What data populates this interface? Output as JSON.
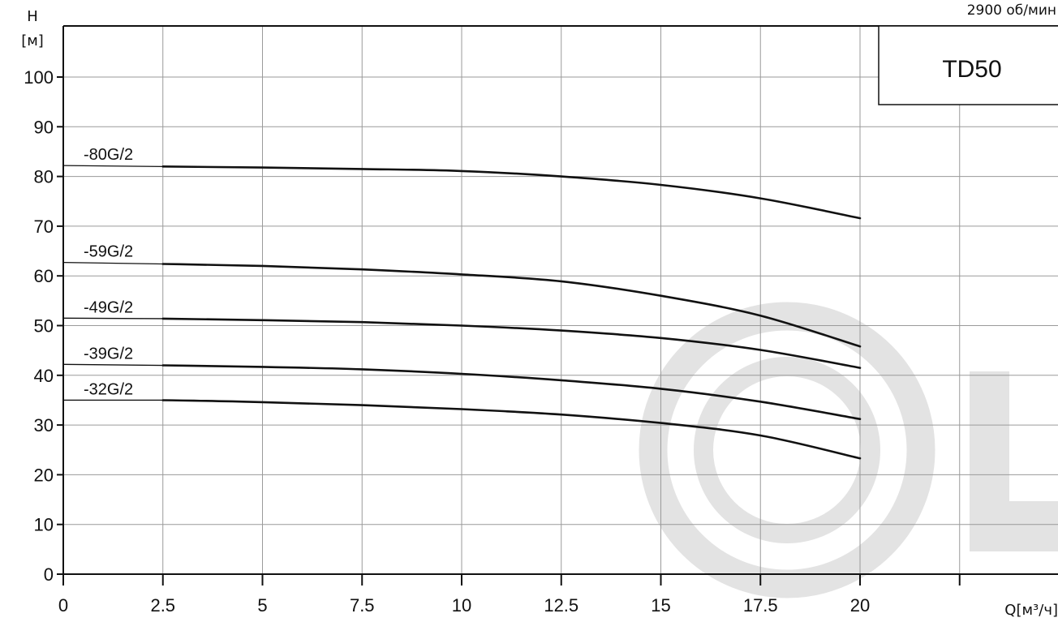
{
  "chart_data": {
    "type": "line",
    "title": "",
    "model": "TD50",
    "speed": "2900 об/мин",
    "ylabel_top": "H",
    "ylabel_unit": "[м]",
    "xlabel": "Q[м³/ч]",
    "xlim": [
      0,
      25
    ],
    "ylim": [
      0,
      110
    ],
    "x_ticks": [
      "0",
      "2.5",
      "5",
      "7.5",
      "10",
      "12.5",
      "15",
      "17.5",
      "20"
    ],
    "y_ticks": [
      "0",
      "10",
      "20",
      "30",
      "40",
      "50",
      "60",
      "70",
      "80",
      "90",
      "100"
    ],
    "grid": true,
    "series": [
      {
        "name": "-80G/2",
        "x": [
          0,
          2.5,
          5,
          7.5,
          10,
          12.5,
          15,
          17.5,
          20
        ],
        "values": [
          82.2,
          82.0,
          81.8,
          81.5,
          81.1,
          80.0,
          78.3,
          75.6,
          71.6
        ]
      },
      {
        "name": "-59G/2",
        "x": [
          0,
          2.5,
          5,
          7.5,
          10,
          12.5,
          15,
          17.5,
          20
        ],
        "values": [
          62.7,
          62.4,
          62.0,
          61.3,
          60.3,
          58.9,
          56.0,
          52.0,
          45.8
        ]
      },
      {
        "name": "-49G/2",
        "x": [
          0,
          2.5,
          5,
          7.5,
          10,
          12.5,
          15,
          17.5,
          20
        ],
        "values": [
          51.5,
          51.4,
          51.1,
          50.7,
          50.0,
          49.0,
          47.5,
          45.1,
          41.5
        ]
      },
      {
        "name": "-39G/2",
        "x": [
          0,
          2.5,
          5,
          7.5,
          10,
          12.5,
          15,
          17.5,
          20
        ],
        "values": [
          42.2,
          42.0,
          41.7,
          41.2,
          40.3,
          39.0,
          37.3,
          34.7,
          31.2
        ]
      },
      {
        "name": "-32G/2",
        "x": [
          0,
          2.5,
          5,
          7.5,
          10,
          12.5,
          15,
          17.5,
          20
        ],
        "values": [
          35.0,
          35.0,
          34.6,
          34.0,
          33.2,
          32.1,
          30.4,
          27.9,
          23.3
        ]
      }
    ]
  }
}
